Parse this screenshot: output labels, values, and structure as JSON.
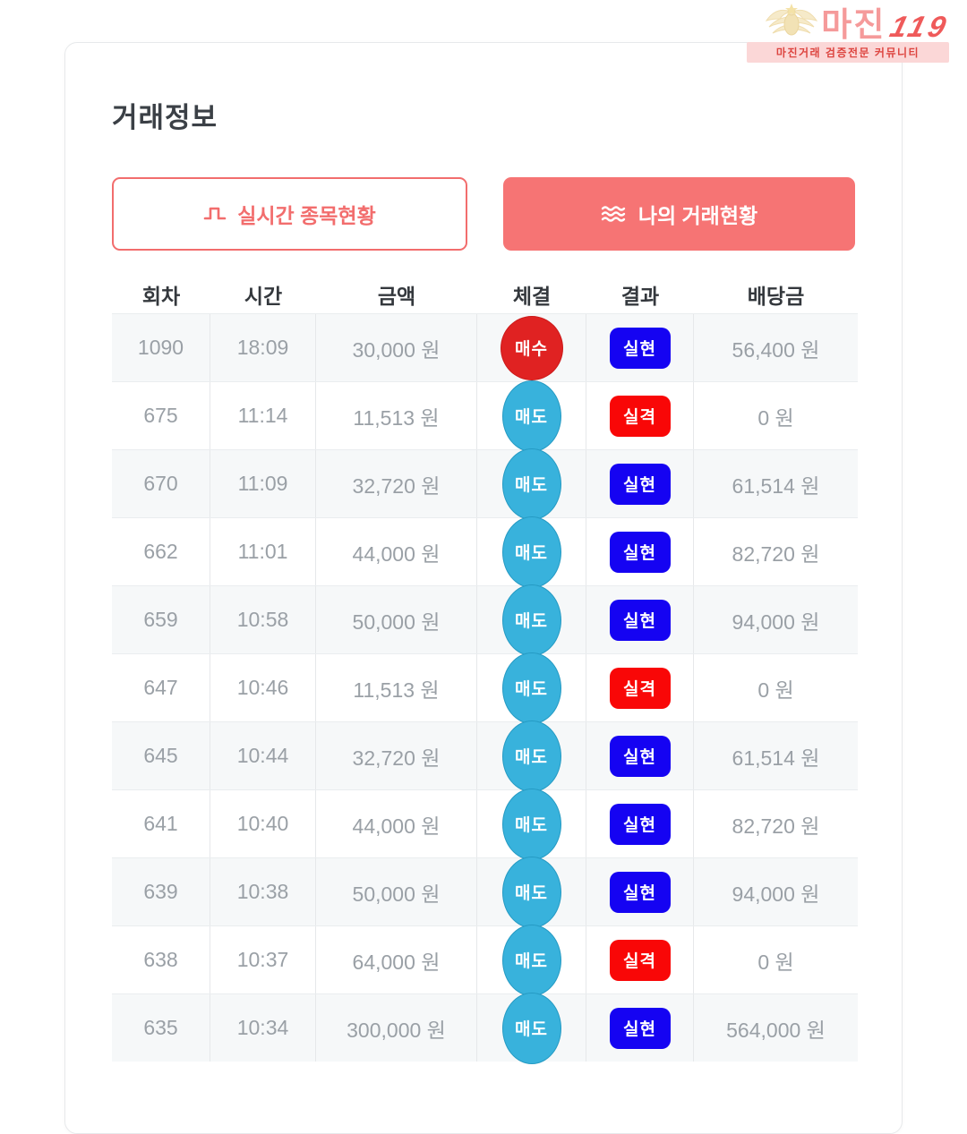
{
  "logo": {
    "title": "마진",
    "suffix": "119",
    "subtitle": "마진거래 검증전문 커뮤니티",
    "emblem_icon": "eagle-emblem-icon"
  },
  "page": {
    "title": "거래정보"
  },
  "buttons": {
    "realtime": {
      "label": "실시간 종목현황",
      "icon": "pulse-icon"
    },
    "mytrades": {
      "label": "나의 거래현황",
      "icon": "waves-icon"
    }
  },
  "table": {
    "columns": [
      "회차",
      "시간",
      "금액",
      "체결",
      "결과",
      "배당금"
    ],
    "rows": [
      {
        "round": "1090",
        "time": "18:09",
        "amount": "30,000 원",
        "exec": "매수",
        "exec_type": "buy",
        "result": "실현",
        "result_type": "realized",
        "payout": "56,400 원"
      },
      {
        "round": "675",
        "time": "11:14",
        "amount": "11,513 원",
        "exec": "매도",
        "exec_type": "sell",
        "result": "실격",
        "result_type": "disqualified",
        "payout": "0 원"
      },
      {
        "round": "670",
        "time": "11:09",
        "amount": "32,720 원",
        "exec": "매도",
        "exec_type": "sell",
        "result": "실현",
        "result_type": "realized",
        "payout": "61,514 원"
      },
      {
        "round": "662",
        "time": "11:01",
        "amount": "44,000 원",
        "exec": "매도",
        "exec_type": "sell",
        "result": "실현",
        "result_type": "realized",
        "payout": "82,720 원"
      },
      {
        "round": "659",
        "time": "10:58",
        "amount": "50,000 원",
        "exec": "매도",
        "exec_type": "sell",
        "result": "실현",
        "result_type": "realized",
        "payout": "94,000 원"
      },
      {
        "round": "647",
        "time": "10:46",
        "amount": "11,513 원",
        "exec": "매도",
        "exec_type": "sell",
        "result": "실격",
        "result_type": "disqualified",
        "payout": "0 원"
      },
      {
        "round": "645",
        "time": "10:44",
        "amount": "32,720 원",
        "exec": "매도",
        "exec_type": "sell",
        "result": "실현",
        "result_type": "realized",
        "payout": "61,514 원"
      },
      {
        "round": "641",
        "time": "10:40",
        "amount": "44,000 원",
        "exec": "매도",
        "exec_type": "sell",
        "result": "실현",
        "result_type": "realized",
        "payout": "82,720 원"
      },
      {
        "round": "639",
        "time": "10:38",
        "amount": "50,000 원",
        "exec": "매도",
        "exec_type": "sell",
        "result": "실현",
        "result_type": "realized",
        "payout": "94,000 원"
      },
      {
        "round": "638",
        "time": "10:37",
        "amount": "64,000 원",
        "exec": "매도",
        "exec_type": "sell",
        "result": "실격",
        "result_type": "disqualified",
        "payout": "0 원"
      },
      {
        "round": "635",
        "time": "10:34",
        "amount": "300,000 원",
        "exec": "매도",
        "exec_type": "sell",
        "result": "실현",
        "result_type": "realized",
        "payout": "564,000 원"
      }
    ]
  },
  "colors": {
    "accent": "#f26d6d",
    "buy": "#e02222",
    "sell": "#38b2dc",
    "realized": "#1503f2",
    "disqualified": "#f90707"
  }
}
